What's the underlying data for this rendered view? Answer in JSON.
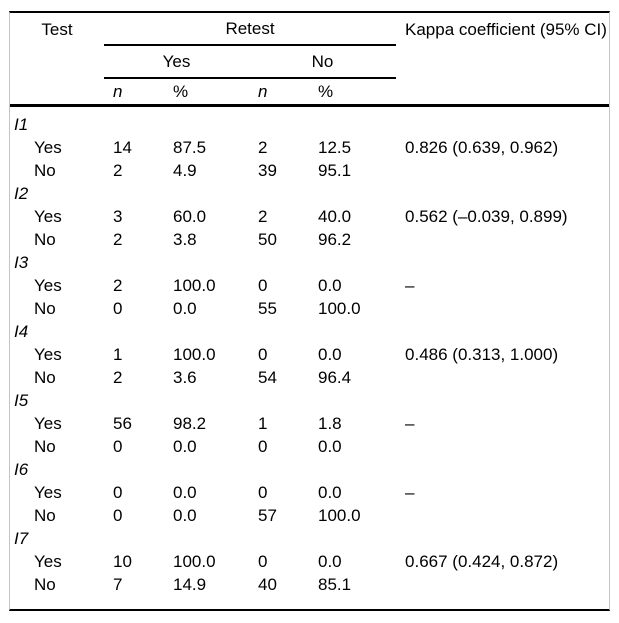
{
  "table": {
    "header": {
      "test": "Test",
      "retest": "Retest",
      "kappa": "Kappa coefficient (95% CI)",
      "yes": "Yes",
      "no": "No",
      "n": "n",
      "pct": "%"
    },
    "groups": [
      {
        "label": "I1",
        "rows": [
          {
            "label": "Yes",
            "n_yes": "14",
            "pct_yes": "87.5",
            "n_no": "2",
            "pct_no": "12.5",
            "kappa": "0.826 (0.639, 0.962)"
          },
          {
            "label": "No",
            "n_yes": "2",
            "pct_yes": "4.9",
            "n_no": "39",
            "pct_no": "95.1",
            "kappa": ""
          }
        ]
      },
      {
        "label": "I2",
        "rows": [
          {
            "label": "Yes",
            "n_yes": "3",
            "pct_yes": "60.0",
            "n_no": "2",
            "pct_no": "40.0",
            "kappa": "0.562 (–0.039, 0.899)"
          },
          {
            "label": "No",
            "n_yes": "2",
            "pct_yes": "3.8",
            "n_no": "50",
            "pct_no": "96.2",
            "kappa": ""
          }
        ]
      },
      {
        "label": "I3",
        "rows": [
          {
            "label": "Yes",
            "n_yes": "2",
            "pct_yes": "100.0",
            "n_no": "0",
            "pct_no": "0.0",
            "kappa": "–"
          },
          {
            "label": "No",
            "n_yes": "0",
            "pct_yes": "0.0",
            "n_no": "55",
            "pct_no": "100.0",
            "kappa": ""
          }
        ]
      },
      {
        "label": "I4",
        "rows": [
          {
            "label": "Yes",
            "n_yes": "1",
            "pct_yes": "100.0",
            "n_no": "0",
            "pct_no": "0.0",
            "kappa": "0.486 (0.313, 1.000)"
          },
          {
            "label": "No",
            "n_yes": "2",
            "pct_yes": "3.6",
            "n_no": "54",
            "pct_no": "96.4",
            "kappa": ""
          }
        ]
      },
      {
        "label": "I5",
        "rows": [
          {
            "label": "Yes",
            "n_yes": "56",
            "pct_yes": "98.2",
            "n_no": "1",
            "pct_no": "1.8",
            "kappa": "–"
          },
          {
            "label": "No",
            "n_yes": "0",
            "pct_yes": "0.0",
            "n_no": "0",
            "pct_no": "0.0",
            "kappa": ""
          }
        ]
      },
      {
        "label": "I6",
        "rows": [
          {
            "label": "Yes",
            "n_yes": "0",
            "pct_yes": "0.0",
            "n_no": "0",
            "pct_no": "0.0",
            "kappa": "–"
          },
          {
            "label": "No",
            "n_yes": "0",
            "pct_yes": "0.0",
            "n_no": "57",
            "pct_no": "100.0",
            "kappa": ""
          }
        ]
      },
      {
        "label": "I7",
        "rows": [
          {
            "label": "Yes",
            "n_yes": "10",
            "pct_yes": "100.0",
            "n_no": "0",
            "pct_no": "0.0",
            "kappa": "0.667 (0.424, 0.872)"
          },
          {
            "label": "No",
            "n_yes": "7",
            "pct_yes": "14.9",
            "n_no": "40",
            "pct_no": "85.1",
            "kappa": ""
          }
        ]
      }
    ]
  },
  "colors": {
    "rule": "#000000",
    "frame_border": "#c4c4c4",
    "text": "#000000",
    "background": "#ffffff"
  }
}
